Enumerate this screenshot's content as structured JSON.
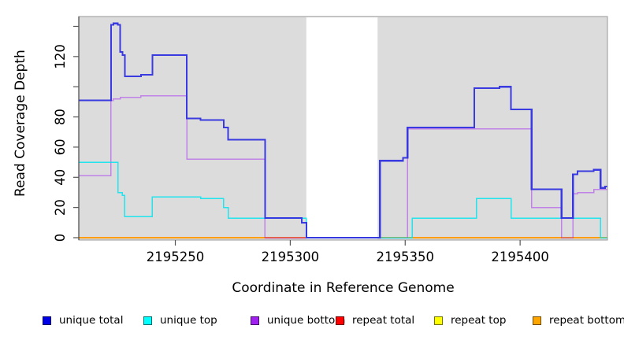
{
  "chart_data": {
    "type": "line",
    "subtype": "step-coverage",
    "title": "",
    "xlabel": "Coordinate in Reference Genome",
    "ylabel": "Read Coverage Depth",
    "xlim": [
      2195208,
      2195438
    ],
    "ylim": [
      0,
      147
    ],
    "plot_bg": "#dcdcdc",
    "border_color": "#999999",
    "axis_color": "#444444",
    "grid": false,
    "mask_region": {
      "x_start": 2195307,
      "x_end": 2195338,
      "color": "#ffffff"
    },
    "x_ticks": [
      {
        "value": 2195250,
        "label": "2195250"
      },
      {
        "value": 2195300,
        "label": "2195300"
      },
      {
        "value": 2195350,
        "label": "2195350"
      },
      {
        "value": 2195400,
        "label": "2195400"
      }
    ],
    "y_ticks": [
      {
        "value": 0,
        "label": "0"
      },
      {
        "value": 20,
        "label": "20"
      },
      {
        "value": 40,
        "label": "40"
      },
      {
        "value": 60,
        "label": "60"
      },
      {
        "value": 80,
        "label": "80"
      },
      {
        "value": 100,
        "label": ""
      },
      {
        "value": 120,
        "label": "120"
      },
      {
        "value": 140,
        "label": ""
      }
    ],
    "series": [
      {
        "name": "repeat top",
        "color": "#ffff00",
        "opacity": 1,
        "width": 1.5,
        "steps": [
          [
            2195208,
            0
          ]
        ],
        "x_end": 2195438
      },
      {
        "name": "repeat bottom",
        "color": "#ff9d00",
        "opacity": 1,
        "width": 1.8,
        "steps": [
          [
            2195208,
            0
          ]
        ],
        "x_end": 2195438
      },
      {
        "name": "repeat total",
        "color": "#ff1a1a",
        "opacity": 0.55,
        "width": 1.5,
        "steps": [
          [
            2195289,
            0
          ]
        ],
        "x_end": 2195307
      },
      {
        "name": "unique bottom",
        "color": "#a020f0",
        "opacity": 0.48,
        "width": 1.5,
        "steps": [
          [
            2195208,
            41
          ],
          [
            2195222,
            91
          ],
          [
            2195223,
            92
          ],
          [
            2195226,
            93
          ],
          [
            2195235,
            94
          ],
          [
            2195255,
            52
          ],
          [
            2195289,
            0
          ],
          [
            2195351,
            72
          ],
          [
            2195405,
            20
          ],
          [
            2195418,
            0
          ],
          [
            2195423,
            29
          ],
          [
            2195425,
            30
          ],
          [
            2195432,
            32
          ]
        ],
        "x_end": 2195438
      },
      {
        "name": "unique top",
        "color": "#00e5ee",
        "opacity": 0.85,
        "width": 1.5,
        "steps": [
          [
            2195208,
            50
          ],
          [
            2195225,
            30
          ],
          [
            2195227,
            28
          ],
          [
            2195228,
            14
          ],
          [
            2195240,
            27
          ],
          [
            2195261,
            26
          ],
          [
            2195271,
            20
          ],
          [
            2195273,
            13
          ],
          [
            2195307,
            0
          ],
          [
            2195353,
            13
          ],
          [
            2195381,
            26
          ],
          [
            2195396,
            13
          ],
          [
            2195435,
            0
          ]
        ],
        "x_end": 2195438
      },
      {
        "name": "unique total",
        "color": "#3030e0",
        "opacity": 0.95,
        "width": 2.1,
        "steps": [
          [
            2195208,
            91
          ],
          [
            2195222,
            141
          ],
          [
            2195223,
            142
          ],
          [
            2195225,
            141
          ],
          [
            2195226,
            123
          ],
          [
            2195227,
            121
          ],
          [
            2195228,
            107
          ],
          [
            2195235,
            108
          ],
          [
            2195240,
            121
          ],
          [
            2195255,
            79
          ],
          [
            2195261,
            78
          ],
          [
            2195271,
            73
          ],
          [
            2195273,
            65
          ],
          [
            2195289,
            13
          ],
          [
            2195305,
            10
          ],
          [
            2195307,
            0
          ],
          [
            2195339,
            51
          ],
          [
            2195349,
            53
          ],
          [
            2195351,
            73
          ],
          [
            2195380,
            99
          ],
          [
            2195391,
            100
          ],
          [
            2195396,
            85
          ],
          [
            2195405,
            32
          ],
          [
            2195418,
            13
          ],
          [
            2195423,
            42
          ],
          [
            2195425,
            44
          ],
          [
            2195432,
            45
          ],
          [
            2195435,
            33
          ],
          [
            2195437,
            34
          ]
        ],
        "x_end": 2195438
      }
    ],
    "legend": [
      {
        "label": "unique total",
        "color": "#0000e6"
      },
      {
        "label": "unique top",
        "color": "#00ffff"
      },
      {
        "label": "unique bottom",
        "color": "#a020f0"
      },
      {
        "label": "repeat total",
        "color": "#ff0000"
      },
      {
        "label": "repeat top",
        "color": "#ffff00"
      },
      {
        "label": "repeat bottom",
        "color": "#ffa500"
      }
    ]
  }
}
